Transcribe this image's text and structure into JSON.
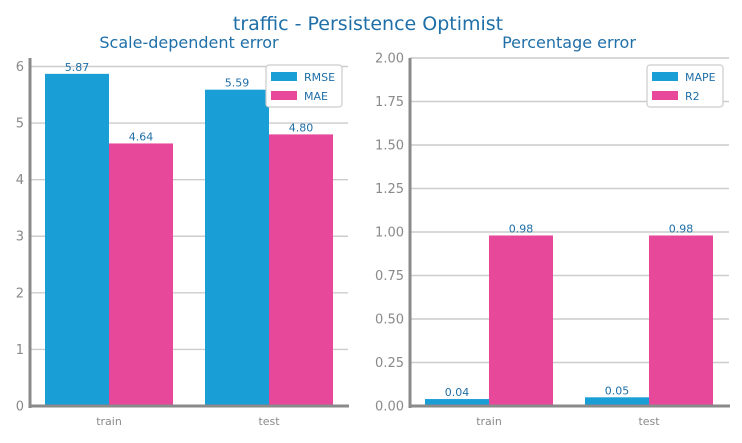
{
  "suptitle": "traffic - Persistence Optimist",
  "chart_data": [
    {
      "type": "bar",
      "title": "Scale-dependent error",
      "xlabel": "",
      "ylabel": "",
      "categories": [
        "train",
        "test"
      ],
      "series": [
        {
          "name": "RMSE",
          "values": [
            5.87,
            5.59
          ],
          "color": "#1a9ed6"
        },
        {
          "name": "MAE",
          "values": [
            4.64,
            4.8
          ],
          "color": "#e8489a"
        }
      ],
      "ylim": [
        0,
        6.15
      ],
      "yticks": [
        0,
        1,
        2,
        3,
        4,
        5,
        6
      ],
      "ytick_decimals": 0,
      "grid": "horizontal",
      "legend": "top-right"
    },
    {
      "type": "bar",
      "title": "Percentage error",
      "xlabel": "",
      "ylabel": "",
      "categories": [
        "train",
        "test"
      ],
      "series": [
        {
          "name": "MAPE",
          "values": [
            0.04,
            0.05
          ],
          "color": "#1a9ed6"
        },
        {
          "name": "R2",
          "values": [
            0.98,
            0.98
          ],
          "color": "#e8489a"
        }
      ],
      "ylim": [
        0,
        2.0
      ],
      "yticks": [
        0,
        0.25,
        0.5,
        0.75,
        1.0,
        1.25,
        1.5,
        1.75,
        2.0
      ],
      "ytick_decimals": 2,
      "grid": "horizontal",
      "legend": "top-right"
    }
  ]
}
